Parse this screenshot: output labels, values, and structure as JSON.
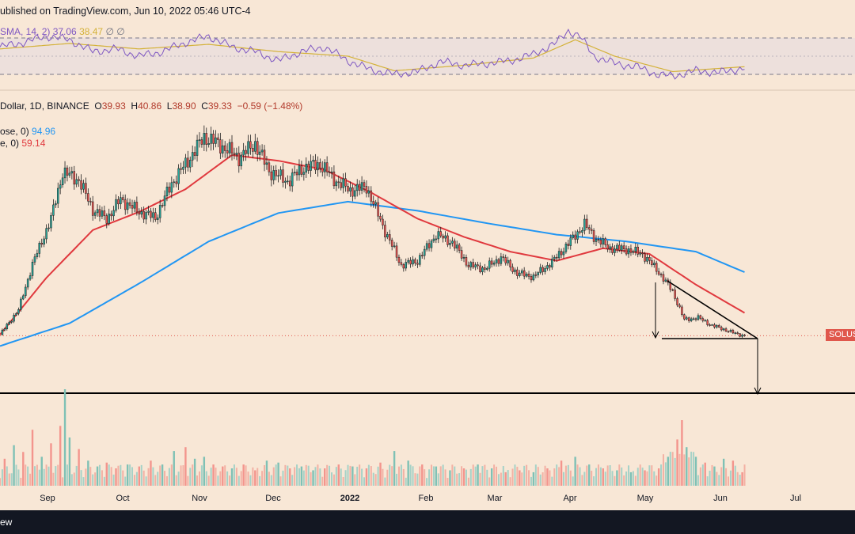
{
  "header": {
    "published": "ublished on TradingView.com, Jun 10, 2022 05:46 UTC-4"
  },
  "rsi": {
    "label": "SMA, 14, 2)",
    "value1": "37.06",
    "value2": "38.47",
    "extra": "∅ ∅"
  },
  "ohlc": {
    "pair": "Dollar, 1D, BINANCE",
    "o_label": "O",
    "o": "39.93",
    "h_label": "H",
    "h": "40.86",
    "l_label": "L",
    "l": "38.90",
    "c_label": "C",
    "c": "39.33",
    "change": "−0.59 (−1.48%)"
  },
  "sma_blue": {
    "label": "ose, 0)",
    "value": "94.96",
    "color": "#2196f3"
  },
  "sma_red": {
    "label": "e, 0)",
    "value": "59.14",
    "color": "#e0393e"
  },
  "price_tag": {
    "label": "SOLUSD",
    "color": "#e0574c"
  },
  "months": [
    "Sep",
    "Oct",
    "Nov",
    "Dec",
    "2022",
    "Feb",
    "Mar",
    "Apr",
    "May",
    "Jun",
    "Jul"
  ],
  "bottom_bar": {
    "text": "ew"
  },
  "chart_data": {
    "type": "candlestick",
    "symbol": "SOLUSD",
    "interval": "1D",
    "exchange": "BINANCE",
    "price_close_series": [
      {
        "t": 0,
        "c": 40
      },
      {
        "t": 8,
        "c": 62
      },
      {
        "t": 14,
        "c": 102
      },
      {
        "t": 22,
        "c": 142
      },
      {
        "t": 27,
        "c": 183
      },
      {
        "t": 34,
        "c": 176
      },
      {
        "t": 40,
        "c": 150
      },
      {
        "t": 46,
        "c": 142
      },
      {
        "t": 52,
        "c": 159
      },
      {
        "t": 60,
        "c": 148
      },
      {
        "t": 67,
        "c": 143
      },
      {
        "t": 74,
        "c": 173
      },
      {
        "t": 80,
        "c": 190
      },
      {
        "t": 88,
        "c": 214
      },
      {
        "t": 94,
        "c": 208
      },
      {
        "t": 103,
        "c": 196
      },
      {
        "t": 110,
        "c": 208
      },
      {
        "t": 116,
        "c": 184
      },
      {
        "t": 124,
        "c": 175
      },
      {
        "t": 131,
        "c": 187
      },
      {
        "t": 138,
        "c": 190
      },
      {
        "t": 145,
        "c": 175
      },
      {
        "t": 151,
        "c": 167
      },
      {
        "t": 158,
        "c": 170
      },
      {
        "t": 166,
        "c": 131
      },
      {
        "t": 173,
        "c": 101
      },
      {
        "t": 180,
        "c": 105
      },
      {
        "t": 188,
        "c": 128
      },
      {
        "t": 195,
        "c": 121
      },
      {
        "t": 202,
        "c": 101
      },
      {
        "t": 209,
        "c": 98
      },
      {
        "t": 216,
        "c": 108
      },
      {
        "t": 223,
        "c": 94
      },
      {
        "t": 230,
        "c": 91
      },
      {
        "t": 238,
        "c": 104
      },
      {
        "t": 245,
        "c": 120
      },
      {
        "t": 252,
        "c": 137
      },
      {
        "t": 257,
        "c": 124
      },
      {
        "t": 263,
        "c": 116
      },
      {
        "t": 270,
        "c": 115
      },
      {
        "t": 277,
        "c": 111
      },
      {
        "t": 284,
        "c": 95
      },
      {
        "t": 290,
        "c": 78
      },
      {
        "t": 295,
        "c": 53
      },
      {
        "t": 301,
        "c": 55
      },
      {
        "t": 307,
        "c": 48
      },
      {
        "t": 313,
        "c": 44
      },
      {
        "t": 317,
        "c": 41
      },
      {
        "t": 321,
        "c": 39
      }
    ],
    "sma_blue_series": [
      {
        "t": 0,
        "v": 30
      },
      {
        "t": 30,
        "v": 50
      },
      {
        "t": 60,
        "v": 85
      },
      {
        "t": 90,
        "v": 122
      },
      {
        "t": 120,
        "v": 147
      },
      {
        "t": 150,
        "v": 157
      },
      {
        "t": 180,
        "v": 149
      },
      {
        "t": 210,
        "v": 138
      },
      {
        "t": 240,
        "v": 128
      },
      {
        "t": 270,
        "v": 122
      },
      {
        "t": 300,
        "v": 113
      },
      {
        "t": 321,
        "v": 94.96
      }
    ],
    "sma_red_series": [
      {
        "t": 0,
        "v": 40
      },
      {
        "t": 20,
        "v": 90
      },
      {
        "t": 40,
        "v": 132
      },
      {
        "t": 60,
        "v": 148
      },
      {
        "t": 80,
        "v": 168
      },
      {
        "t": 100,
        "v": 198
      },
      {
        "t": 120,
        "v": 193
      },
      {
        "t": 140,
        "v": 185
      },
      {
        "t": 160,
        "v": 165
      },
      {
        "t": 180,
        "v": 142
      },
      {
        "t": 200,
        "v": 126
      },
      {
        "t": 220,
        "v": 113
      },
      {
        "t": 240,
        "v": 105
      },
      {
        "t": 260,
        "v": 116
      },
      {
        "t": 280,
        "v": 111
      },
      {
        "t": 300,
        "v": 84
      },
      {
        "t": 321,
        "v": 59.14
      }
    ],
    "rsi_series": [
      {
        "t": 0,
        "v": 60
      },
      {
        "t": 10,
        "v": 65
      },
      {
        "t": 20,
        "v": 72
      },
      {
        "t": 30,
        "v": 68
      },
      {
        "t": 40,
        "v": 55
      },
      {
        "t": 50,
        "v": 58
      },
      {
        "t": 60,
        "v": 50
      },
      {
        "t": 70,
        "v": 55
      },
      {
        "t": 80,
        "v": 65
      },
      {
        "t": 90,
        "v": 72
      },
      {
        "t": 100,
        "v": 60
      },
      {
        "t": 110,
        "v": 55
      },
      {
        "t": 120,
        "v": 45
      },
      {
        "t": 130,
        "v": 55
      },
      {
        "t": 140,
        "v": 60
      },
      {
        "t": 150,
        "v": 45
      },
      {
        "t": 160,
        "v": 35
      },
      {
        "t": 170,
        "v": 30
      },
      {
        "t": 180,
        "v": 33
      },
      {
        "t": 190,
        "v": 44
      },
      {
        "t": 200,
        "v": 40
      },
      {
        "t": 210,
        "v": 42
      },
      {
        "t": 220,
        "v": 45
      },
      {
        "t": 230,
        "v": 52
      },
      {
        "t": 240,
        "v": 65
      },
      {
        "t": 245,
        "v": 78
      },
      {
        "t": 250,
        "v": 72
      },
      {
        "t": 256,
        "v": 50
      },
      {
        "t": 265,
        "v": 42
      },
      {
        "t": 275,
        "v": 38
      },
      {
        "t": 283,
        "v": 30
      },
      {
        "t": 290,
        "v": 28
      },
      {
        "t": 300,
        "v": 34
      },
      {
        "t": 310,
        "v": 32
      },
      {
        "t": 321,
        "v": 37.06
      }
    ],
    "rsi_ma_series": [
      {
        "t": 0,
        "v": 58
      },
      {
        "t": 30,
        "v": 64
      },
      {
        "t": 60,
        "v": 58
      },
      {
        "t": 90,
        "v": 63
      },
      {
        "t": 120,
        "v": 55
      },
      {
        "t": 150,
        "v": 50
      },
      {
        "t": 170,
        "v": 34
      },
      {
        "t": 200,
        "v": 40
      },
      {
        "t": 230,
        "v": 48
      },
      {
        "t": 248,
        "v": 68
      },
      {
        "t": 265,
        "v": 50
      },
      {
        "t": 290,
        "v": 33
      },
      {
        "t": 321,
        "v": 38.47
      }
    ],
    "volume_series": [
      {
        "t": 2,
        "v": 28
      },
      {
        "t": 6,
        "v": 42
      },
      {
        "t": 10,
        "v": 35
      },
      {
        "t": 14,
        "v": 58
      },
      {
        "t": 18,
        "v": 30
      },
      {
        "t": 22,
        "v": 44
      },
      {
        "t": 26,
        "v": 62
      },
      {
        "t": 28,
        "v": 100
      },
      {
        "t": 30,
        "v": 50
      },
      {
        "t": 34,
        "v": 38
      },
      {
        "t": 38,
        "v": 26
      },
      {
        "t": 42,
        "v": 20
      },
      {
        "t": 46,
        "v": 24
      },
      {
        "t": 50,
        "v": 18
      },
      {
        "t": 55,
        "v": 22
      },
      {
        "t": 60,
        "v": 20
      },
      {
        "t": 65,
        "v": 26
      },
      {
        "t": 70,
        "v": 22
      },
      {
        "t": 75,
        "v": 36
      },
      {
        "t": 80,
        "v": 40
      },
      {
        "t": 84,
        "v": 28
      },
      {
        "t": 88,
        "v": 30
      },
      {
        "t": 92,
        "v": 22
      },
      {
        "t": 96,
        "v": 20
      },
      {
        "t": 100,
        "v": 18
      },
      {
        "t": 105,
        "v": 22
      },
      {
        "t": 110,
        "v": 16
      },
      {
        "t": 115,
        "v": 26
      },
      {
        "t": 120,
        "v": 24
      },
      {
        "t": 125,
        "v": 18
      },
      {
        "t": 130,
        "v": 20
      },
      {
        "t": 135,
        "v": 16
      },
      {
        "t": 140,
        "v": 18
      },
      {
        "t": 146,
        "v": 22
      },
      {
        "t": 152,
        "v": 20
      },
      {
        "t": 158,
        "v": 18
      },
      {
        "t": 164,
        "v": 24
      },
      {
        "t": 170,
        "v": 36
      },
      {
        "t": 176,
        "v": 26
      },
      {
        "t": 182,
        "v": 22
      },
      {
        "t": 188,
        "v": 20
      },
      {
        "t": 194,
        "v": 16
      },
      {
        "t": 200,
        "v": 18
      },
      {
        "t": 206,
        "v": 22
      },
      {
        "t": 212,
        "v": 18
      },
      {
        "t": 218,
        "v": 14
      },
      {
        "t": 224,
        "v": 16
      },
      {
        "t": 230,
        "v": 14
      },
      {
        "t": 236,
        "v": 18
      },
      {
        "t": 242,
        "v": 26
      },
      {
        "t": 248,
        "v": 30
      },
      {
        "t": 254,
        "v": 22
      },
      {
        "t": 260,
        "v": 18
      },
      {
        "t": 266,
        "v": 16
      },
      {
        "t": 272,
        "v": 14
      },
      {
        "t": 278,
        "v": 16
      },
      {
        "t": 284,
        "v": 18
      },
      {
        "t": 288,
        "v": 30
      },
      {
        "t": 292,
        "v": 48
      },
      {
        "t": 294,
        "v": 68
      },
      {
        "t": 296,
        "v": 40
      },
      {
        "t": 300,
        "v": 30
      },
      {
        "t": 304,
        "v": 24
      },
      {
        "t": 308,
        "v": 20
      },
      {
        "t": 312,
        "v": 28
      },
      {
        "t": 316,
        "v": 26
      },
      {
        "t": 320,
        "v": 14
      }
    ]
  }
}
